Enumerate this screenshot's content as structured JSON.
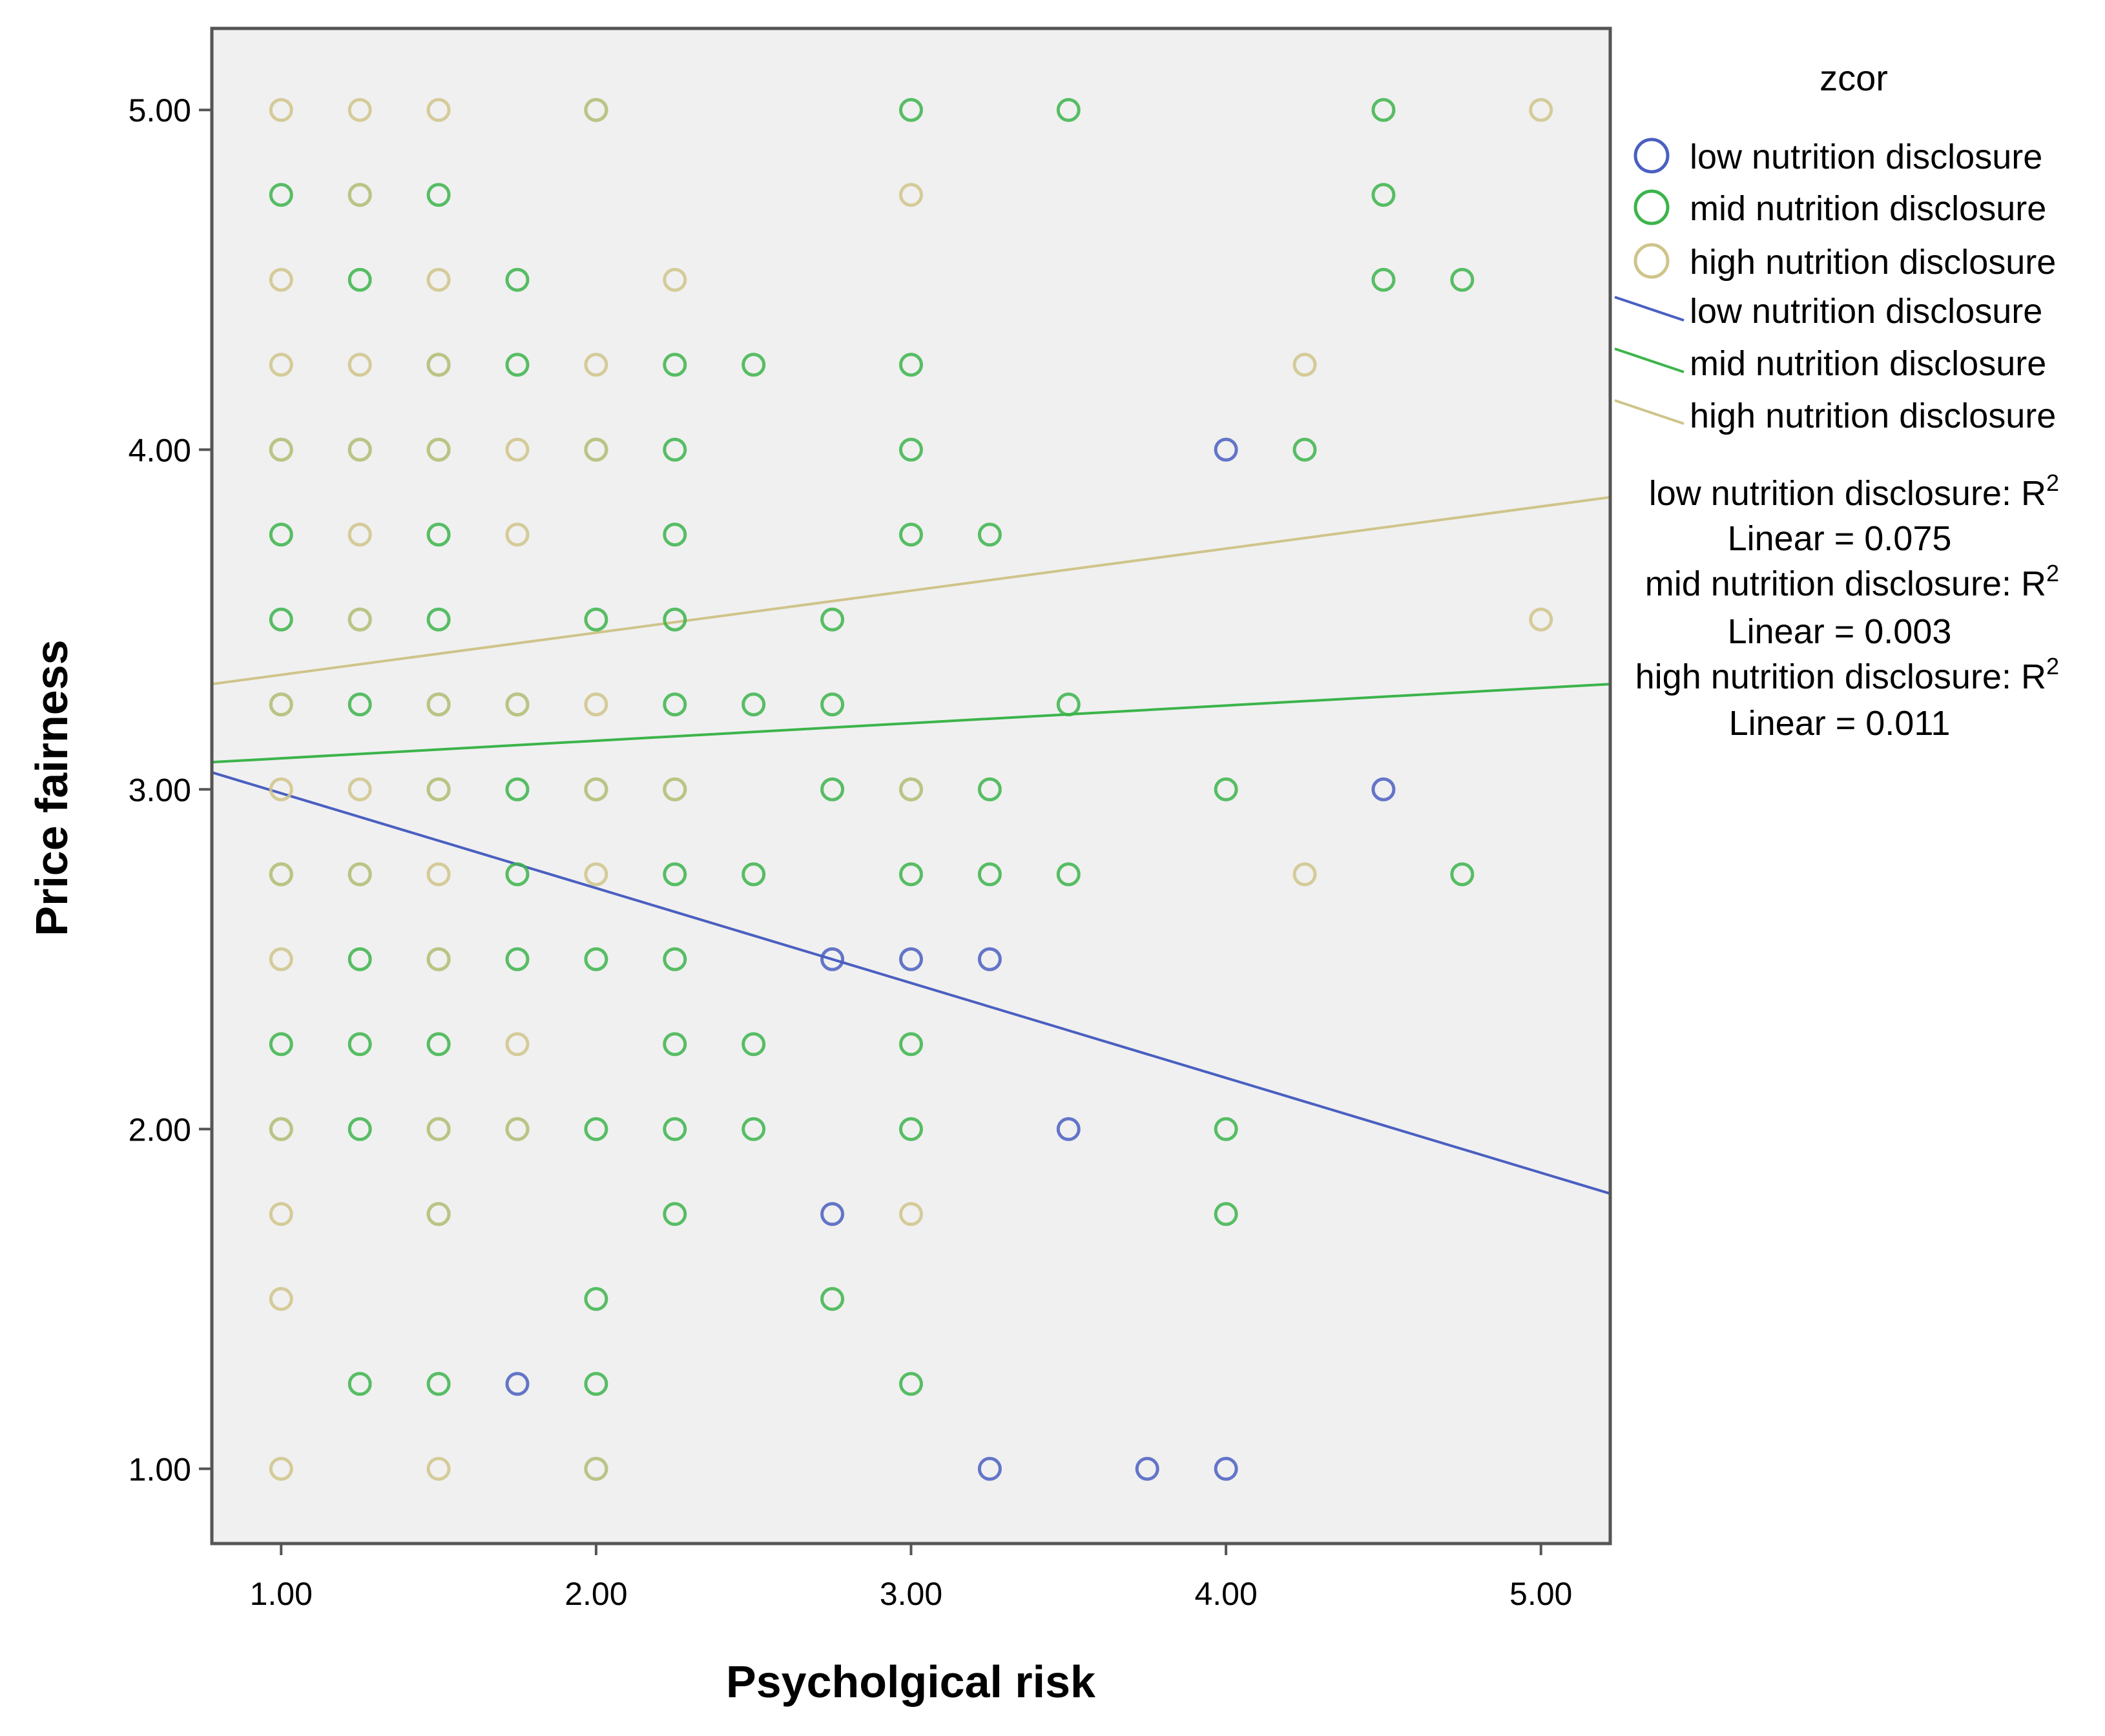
{
  "chart_data": {
    "type": "scatter",
    "title": "",
    "xlabel": "Psycholgical risk",
    "ylabel": "Price fairness",
    "xlim": [
      0.78,
      5.22
    ],
    "ylim": [
      0.78,
      5.24
    ],
    "xticks": [
      "1.00",
      "2.00",
      "3.00",
      "4.00",
      "5.00"
    ],
    "xtick_values": [
      1,
      2,
      3,
      4,
      5
    ],
    "yticks": [
      "1.00",
      "2.00",
      "3.00",
      "4.00",
      "5.00"
    ],
    "ytick_values": [
      1,
      2,
      3,
      4,
      5
    ],
    "grid": false,
    "plot_background": "#f0f0f0",
    "legend": {
      "title": "zcor",
      "position": "right",
      "marker_entries": [
        "low nutrition disclosure",
        "mid nutrition disclosure",
        "high nutrition disclosure"
      ],
      "line_entries": [
        "low nutrition disclosure",
        "mid nutrition disclosure",
        "high nutrition disclosure"
      ],
      "r2_annotations": [
        {
          "line1": "low nutrition disclosure: R",
          "sup": "2",
          "line2": "Linear = 0.075"
        },
        {
          "line1": "mid nutrition disclosure: R",
          "sup": "2",
          "line2": "Linear = 0.003"
        },
        {
          "line1": "high nutrition disclosure: R",
          "sup": "2",
          "line2": "Linear = 0.011"
        }
      ]
    },
    "series": [
      {
        "name": "low nutrition disclosure",
        "color": "#4a5fc1",
        "points": [
          [
            4.0,
            4.0
          ],
          [
            4.5,
            3.0
          ],
          [
            2.75,
            2.5
          ],
          [
            3.0,
            2.5
          ],
          [
            3.25,
            2.5
          ],
          [
            3.5,
            2.0
          ],
          [
            2.75,
            1.75
          ],
          [
            1.75,
            1.25
          ],
          [
            3.25,
            1.0
          ],
          [
            3.75,
            1.0
          ],
          [
            4.0,
            1.0
          ]
        ],
        "fit": {
          "x": [
            0.78,
            5.22
          ],
          "y": [
            3.05,
            1.81
          ]
        }
      },
      {
        "name": "mid nutrition disclosure",
        "color": "#3cb44b",
        "points": [
          [
            2.0,
            5.0
          ],
          [
            3.0,
            5.0
          ],
          [
            3.5,
            5.0
          ],
          [
            4.5,
            5.0
          ],
          [
            1.0,
            4.75
          ],
          [
            1.25,
            4.75
          ],
          [
            1.5,
            4.75
          ],
          [
            4.5,
            4.75
          ],
          [
            1.25,
            4.5
          ],
          [
            1.75,
            4.5
          ],
          [
            4.5,
            4.5
          ],
          [
            4.75,
            4.5
          ],
          [
            1.5,
            4.25
          ],
          [
            1.75,
            4.25
          ],
          [
            2.25,
            4.25
          ],
          [
            2.5,
            4.25
          ],
          [
            3.0,
            4.25
          ],
          [
            1.0,
            4.0
          ],
          [
            1.25,
            4.0
          ],
          [
            1.5,
            4.0
          ],
          [
            2.0,
            4.0
          ],
          [
            2.25,
            4.0
          ],
          [
            3.0,
            4.0
          ],
          [
            4.25,
            4.0
          ],
          [
            1.0,
            3.75
          ],
          [
            1.5,
            3.75
          ],
          [
            2.25,
            3.75
          ],
          [
            3.0,
            3.75
          ],
          [
            3.25,
            3.75
          ],
          [
            1.0,
            3.5
          ],
          [
            1.25,
            3.5
          ],
          [
            1.5,
            3.5
          ],
          [
            2.0,
            3.5
          ],
          [
            2.25,
            3.5
          ],
          [
            2.75,
            3.5
          ],
          [
            1.0,
            3.25
          ],
          [
            1.25,
            3.25
          ],
          [
            1.5,
            3.25
          ],
          [
            1.75,
            3.25
          ],
          [
            2.25,
            3.25
          ],
          [
            2.5,
            3.25
          ],
          [
            2.75,
            3.25
          ],
          [
            3.5,
            3.25
          ],
          [
            1.5,
            3.0
          ],
          [
            1.75,
            3.0
          ],
          [
            2.0,
            3.0
          ],
          [
            2.25,
            3.0
          ],
          [
            2.75,
            3.0
          ],
          [
            3.0,
            3.0
          ],
          [
            3.25,
            3.0
          ],
          [
            4.0,
            3.0
          ],
          [
            1.0,
            2.75
          ],
          [
            1.25,
            2.75
          ],
          [
            1.75,
            2.75
          ],
          [
            2.25,
            2.75
          ],
          [
            2.5,
            2.75
          ],
          [
            3.0,
            2.75
          ],
          [
            3.25,
            2.75
          ],
          [
            3.5,
            2.75
          ],
          [
            4.75,
            2.75
          ],
          [
            1.25,
            2.5
          ],
          [
            1.5,
            2.5
          ],
          [
            1.75,
            2.5
          ],
          [
            2.0,
            2.5
          ],
          [
            2.25,
            2.5
          ],
          [
            1.0,
            2.25
          ],
          [
            1.25,
            2.25
          ],
          [
            1.5,
            2.25
          ],
          [
            2.25,
            2.25
          ],
          [
            2.5,
            2.25
          ],
          [
            3.0,
            2.25
          ],
          [
            1.0,
            2.0
          ],
          [
            1.25,
            2.0
          ],
          [
            1.5,
            2.0
          ],
          [
            1.75,
            2.0
          ],
          [
            2.0,
            2.0
          ],
          [
            2.25,
            2.0
          ],
          [
            2.5,
            2.0
          ],
          [
            3.0,
            2.0
          ],
          [
            4.0,
            2.0
          ],
          [
            1.5,
            1.75
          ],
          [
            2.25,
            1.75
          ],
          [
            4.0,
            1.75
          ],
          [
            2.0,
            1.5
          ],
          [
            2.75,
            1.5
          ],
          [
            1.25,
            1.25
          ],
          [
            1.5,
            1.25
          ],
          [
            2.0,
            1.25
          ],
          [
            3.0,
            1.25
          ],
          [
            2.0,
            1.0
          ]
        ],
        "fit": {
          "x": [
            0.78,
            5.22
          ],
          "y": [
            3.08,
            3.31
          ]
        }
      },
      {
        "name": "high nutrition disclosure",
        "color": "#cfc48a",
        "points": [
          [
            1.0,
            5.0
          ],
          [
            1.25,
            5.0
          ],
          [
            1.5,
            5.0
          ],
          [
            2.0,
            5.0
          ],
          [
            5.0,
            5.0
          ],
          [
            1.25,
            4.75
          ],
          [
            3.0,
            4.75
          ],
          [
            1.0,
            4.5
          ],
          [
            1.5,
            4.5
          ],
          [
            2.25,
            4.5
          ],
          [
            1.0,
            4.25
          ],
          [
            1.25,
            4.25
          ],
          [
            1.5,
            4.25
          ],
          [
            2.0,
            4.25
          ],
          [
            4.25,
            4.25
          ],
          [
            1.0,
            4.0
          ],
          [
            1.25,
            4.0
          ],
          [
            1.5,
            4.0
          ],
          [
            1.75,
            4.0
          ],
          [
            2.0,
            4.0
          ],
          [
            1.25,
            3.75
          ],
          [
            1.75,
            3.75
          ],
          [
            1.25,
            3.5
          ],
          [
            5.0,
            3.5
          ],
          [
            1.0,
            3.25
          ],
          [
            1.5,
            3.25
          ],
          [
            1.75,
            3.25
          ],
          [
            2.0,
            3.25
          ],
          [
            1.0,
            3.0
          ],
          [
            1.25,
            3.0
          ],
          [
            1.5,
            3.0
          ],
          [
            2.0,
            3.0
          ],
          [
            2.25,
            3.0
          ],
          [
            3.0,
            3.0
          ],
          [
            1.0,
            2.75
          ],
          [
            1.25,
            2.75
          ],
          [
            1.5,
            2.75
          ],
          [
            2.0,
            2.75
          ],
          [
            4.25,
            2.75
          ],
          [
            1.0,
            2.5
          ],
          [
            1.5,
            2.5
          ],
          [
            1.75,
            2.25
          ],
          [
            1.0,
            2.0
          ],
          [
            1.5,
            2.0
          ],
          [
            1.75,
            2.0
          ],
          [
            1.0,
            1.75
          ],
          [
            1.5,
            1.75
          ],
          [
            3.0,
            1.75
          ],
          [
            1.0,
            1.5
          ],
          [
            1.0,
            1.0
          ],
          [
            1.5,
            1.0
          ],
          [
            2.0,
            1.0
          ]
        ],
        "fit": {
          "x": [
            0.78,
            5.22
          ],
          "y": [
            3.31,
            3.86
          ]
        }
      }
    ]
  }
}
